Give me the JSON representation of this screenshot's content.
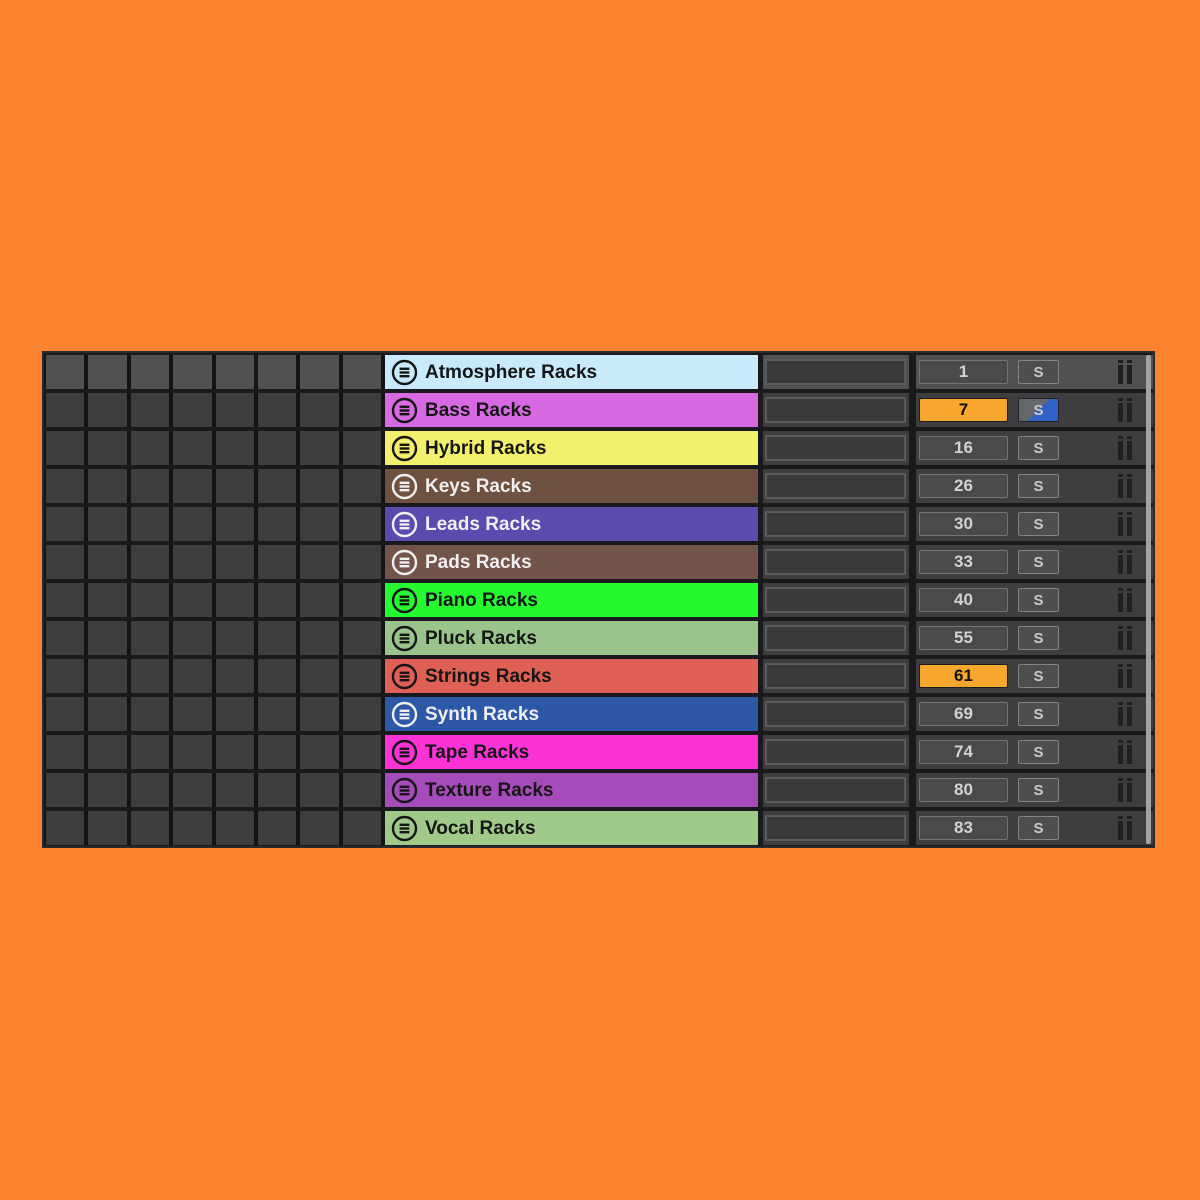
{
  "page": {
    "background_color": "#fb822f"
  },
  "panel": {
    "background_color": "#1a1a1c",
    "border_color": "#2a2a2c",
    "row_color": "#3e3e40",
    "row_highlight_color": "#515153",
    "cell_gap_color": "#141416",
    "scrollbar_color": "#a2a2a4",
    "clip_cells_per_row": 8
  },
  "styles": {
    "value_box_fill": "#4a4a4c",
    "value_text_color": "#d2d2d4",
    "value_highlight_bg": "#f7a62e",
    "value_highlight_text": "#121212",
    "solo_button_fill": "#4e4e50",
    "solo_partial_gray": "#64676b",
    "solo_partial_blue": "#2f62c7",
    "display_box_fill": "#3a3a3c",
    "pause_icon_color": "#202022",
    "dark_label_color": "#161616",
    "light_label_color": "#efefef"
  },
  "controls": {
    "solo_label": "S"
  },
  "icons": {
    "group_track_icon": "circled-hamburger",
    "pause_icon": "double-bars-with-caps"
  },
  "tracks": [
    {
      "name": "Atmosphere Racks",
      "color": "#c9eafb",
      "label_tone": "dark",
      "value": "1",
      "value_highlighted": false,
      "solo": "normal",
      "row_highlighted": true
    },
    {
      "name": "Bass Racks",
      "color": "#d769e2",
      "label_tone": "dark",
      "value": "7",
      "value_highlighted": true,
      "solo": "partial",
      "row_highlighted": false
    },
    {
      "name": "Hybrid Racks",
      "color": "#f2f06d",
      "label_tone": "dark",
      "value": "16",
      "value_highlighted": false,
      "solo": "normal",
      "row_highlighted": false
    },
    {
      "name": "Keys Racks",
      "color": "#6f5142",
      "label_tone": "light",
      "value": "26",
      "value_highlighted": false,
      "solo": "normal",
      "row_highlighted": false
    },
    {
      "name": "Leads Racks",
      "color": "#5d4aae",
      "label_tone": "light",
      "value": "30",
      "value_highlighted": false,
      "solo": "normal",
      "row_highlighted": false
    },
    {
      "name": "Pads Racks",
      "color": "#73544a",
      "label_tone": "light",
      "value": "33",
      "value_highlighted": false,
      "solo": "normal",
      "row_highlighted": false
    },
    {
      "name": "Piano Racks",
      "color": "#25fa31",
      "label_tone": "dark",
      "value": "40",
      "value_highlighted": false,
      "solo": "normal",
      "row_highlighted": false
    },
    {
      "name": "Pluck Racks",
      "color": "#9ac48b",
      "label_tone": "dark",
      "value": "55",
      "value_highlighted": false,
      "solo": "normal",
      "row_highlighted": false
    },
    {
      "name": "Strings Racks",
      "color": "#df6155",
      "label_tone": "dark",
      "value": "61",
      "value_highlighted": true,
      "solo": "normal",
      "row_highlighted": false
    },
    {
      "name": "Synth Racks",
      "color": "#2d58a8",
      "label_tone": "light",
      "value": "69",
      "value_highlighted": false,
      "solo": "normal",
      "row_highlighted": false
    },
    {
      "name": "Tape Racks",
      "color": "#fb33d6",
      "label_tone": "dark",
      "value": "74",
      "value_highlighted": false,
      "solo": "normal",
      "row_highlighted": false
    },
    {
      "name": "Texture Racks",
      "color": "#a64bba",
      "label_tone": "dark",
      "value": "80",
      "value_highlighted": false,
      "solo": "normal",
      "row_highlighted": false
    },
    {
      "name": "Vocal Racks",
      "color": "#a0c98a",
      "label_tone": "dark",
      "value": "83",
      "value_highlighted": false,
      "solo": "normal",
      "row_highlighted": false
    }
  ]
}
